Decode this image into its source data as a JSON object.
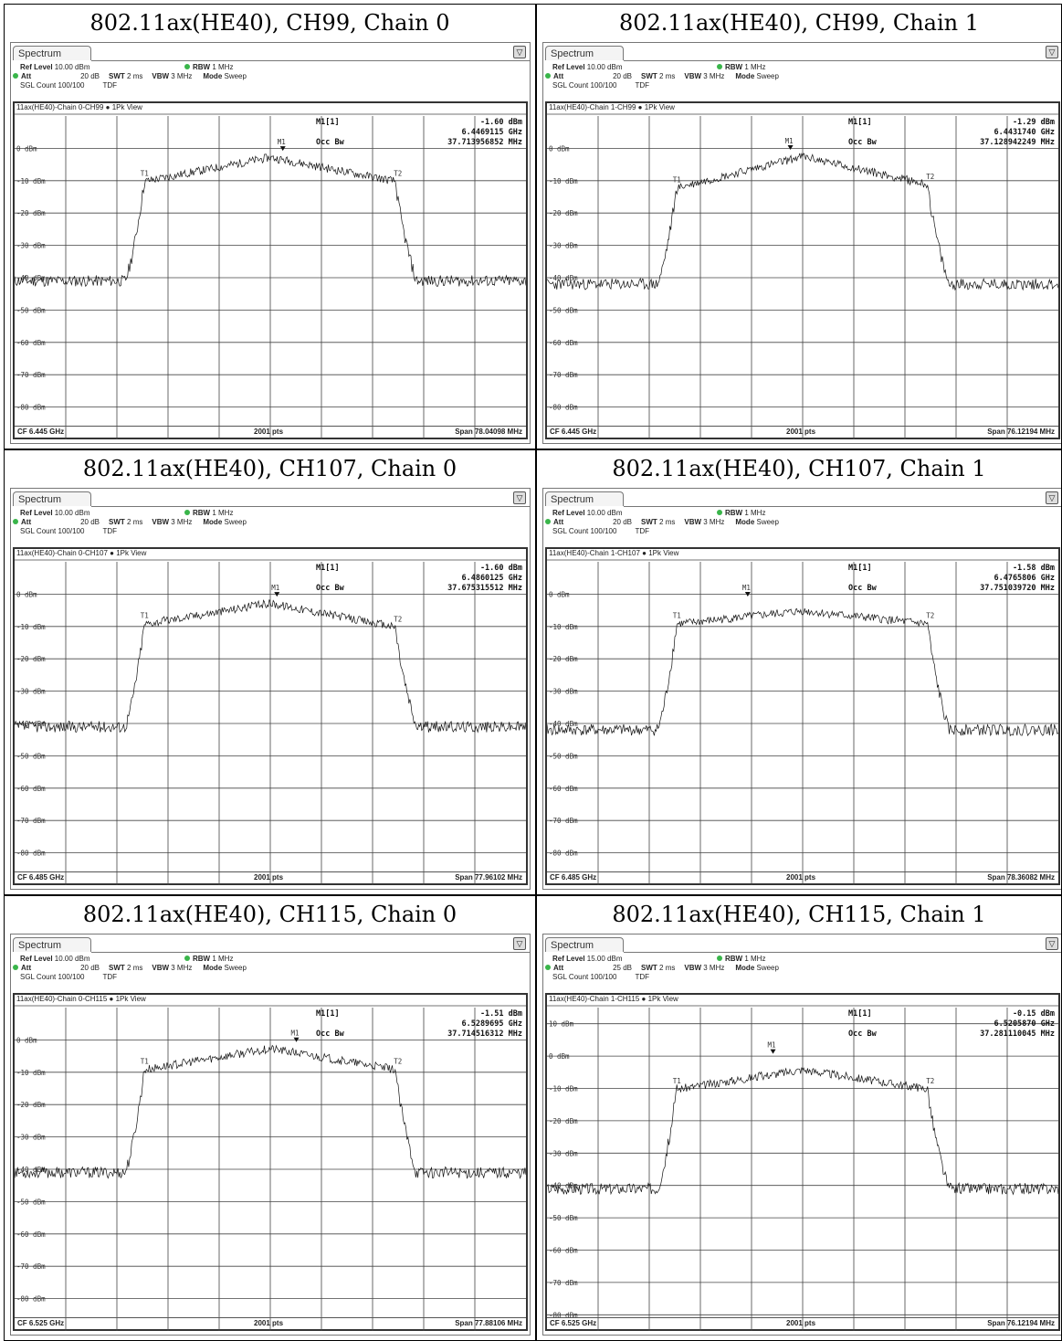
{
  "panels": [
    {
      "title": "802.11ax(HE40), CH99, Chain 0",
      "tab": "Spectrum",
      "ref_level": "10.00 dBm",
      "att": "20 dB",
      "swt": "2 ms",
      "rbw": "1 MHz",
      "vbw": "3 MHz",
      "mode": "Sweep",
      "sgl_count": "100/100",
      "tdf": "TDF",
      "trace_header": "11ax(HE40)-Chain 0-CH99",
      "view": "1Pk View",
      "marker": "M1[1]",
      "marker_level": "-1.60 dBm",
      "marker_freq": "6.4469115 GHz",
      "occ_bw_label": "Occ Bw",
      "occ_bw": "37.713956852 MHz",
      "cf": "CF 6.445 GHz",
      "pts": "2001 pts",
      "span": "Span 78.04098 MHz",
      "seed": 11
    },
    {
      "title": "802.11ax(HE40), CH99, Chain 1",
      "tab": "Spectrum",
      "ref_level": "10.00 dBm",
      "att": "20 dB",
      "swt": "2 ms",
      "rbw": "1 MHz",
      "vbw": "3 MHz",
      "mode": "Sweep",
      "sgl_count": "100/100",
      "tdf": "TDF",
      "trace_header": "11ax(HE40)-Chain 1-CH99",
      "view": "1Pk View",
      "marker": "M1[1]",
      "marker_level": "-1.29 dBm",
      "marker_freq": "6.4431740 GHz",
      "occ_bw_label": "Occ Bw",
      "occ_bw": "37.128942249 MHz",
      "cf": "CF 6.445 GHz",
      "pts": "2001 pts",
      "span": "Span 76.12194 MHz",
      "seed": 23
    },
    {
      "title": "802.11ax(HE40), CH107, Chain 0",
      "tab": "Spectrum",
      "ref_level": "10.00 dBm",
      "att": "20 dB",
      "swt": "2 ms",
      "rbw": "1 MHz",
      "vbw": "3 MHz",
      "mode": "Sweep",
      "sgl_count": "100/100",
      "tdf": "TDF",
      "trace_header": "11ax(HE40)-Chain 0-CH107",
      "view": "1Pk View",
      "marker": "M1[1]",
      "marker_level": "-1.60 dBm",
      "marker_freq": "6.4860125 GHz",
      "occ_bw_label": "Occ Bw",
      "occ_bw": "37.675315512 MHz",
      "cf": "CF 6.485 GHz",
      "pts": "2001 pts",
      "span": "Span 77.96102 MHz",
      "seed": 37
    },
    {
      "title": "802.11ax(HE40), CH107, Chain 1",
      "tab": "Spectrum",
      "ref_level": "10.00 dBm",
      "att": "20 dB",
      "swt": "2 ms",
      "rbw": "1 MHz",
      "vbw": "3 MHz",
      "mode": "Sweep",
      "sgl_count": "100/100",
      "tdf": "TDF",
      "trace_header": "11ax(HE40)-Chain 1-CH107",
      "view": "1Pk View",
      "marker": "M1[1]",
      "marker_level": "-1.58 dBm",
      "marker_freq": "6.4765806 GHz",
      "occ_bw_label": "Occ Bw",
      "occ_bw": "37.751039720 MHz",
      "cf": "CF 6.485 GHz",
      "pts": "2001 pts",
      "span": "Span 78.36082 MHz",
      "seed": 41
    },
    {
      "title": "802.11ax(HE40), CH115, Chain 0",
      "tab": "Spectrum",
      "ref_level": "10.00 dBm",
      "att": "20 dB",
      "swt": "2 ms",
      "rbw": "1 MHz",
      "vbw": "3 MHz",
      "mode": "Sweep",
      "sgl_count": "100/100",
      "tdf": "TDF",
      "trace_header": "11ax(HE40)-Chain 0-CH115",
      "view": "1Pk View",
      "marker": "M1[1]",
      "marker_level": "-1.51 dBm",
      "marker_freq": "6.5289695 GHz",
      "occ_bw_label": "Occ Bw",
      "occ_bw": "37.714516312 MHz",
      "cf": "CF 6.525 GHz",
      "pts": "2001 pts",
      "span": "Span 77.88106 MHz",
      "seed": 53
    },
    {
      "title": "802.11ax(HE40), CH115, Chain 1",
      "tab": "Spectrum",
      "ref_level": "15.00 dBm",
      "att": "25 dB",
      "swt": "2 ms",
      "rbw": "1 MHz",
      "vbw": "3 MHz",
      "mode": "Sweep",
      "sgl_count": "100/100",
      "tdf": "TDF",
      "trace_header": "11ax(HE40)-Chain 1-CH115",
      "view": "1Pk View",
      "marker": "M1[1]",
      "marker_level": "-0.15 dBm",
      "marker_freq": "6.5205870 GHz",
      "occ_bw_label": "Occ Bw",
      "occ_bw": "37.281110045 MHz",
      "cf": "CF 6.525 GHz",
      "pts": "2001 pts",
      "span": "Span 76.12194 MHz",
      "seed": 67
    }
  ],
  "chart_data": [
    {
      "type": "line",
      "title": "802.11ax(HE40), CH99, Chain 0",
      "ylim": [
        -90,
        10
      ],
      "yticks": [
        "0 dBm",
        "-10 dBm",
        "-20 dBm",
        "-30 dBm",
        "-40 dBm",
        "-50 dBm",
        "-60 dBm",
        "-70 dBm",
        "-80 dBm"
      ],
      "center_ghz": 6.445,
      "span_mhz": 78.04098,
      "noise_floor_dbm": -41,
      "plateau_dbm": [
        -9,
        -1.6,
        -9
      ],
      "t1": "T1",
      "t2": "T2",
      "m1": "M1",
      "marker_x_ghz": 6.4469115,
      "marker_y_dbm": -1.6
    },
    {
      "type": "line",
      "title": "802.11ax(HE40), CH99, Chain 1",
      "ylim": [
        -90,
        10
      ],
      "yticks": [
        "0 dBm",
        "-10 dBm",
        "-20 dBm",
        "-30 dBm",
        "-40 dBm",
        "-50 dBm",
        "-60 dBm",
        "-70 dBm",
        "-80 dBm"
      ],
      "center_ghz": 6.445,
      "span_mhz": 76.12194,
      "noise_floor_dbm": -42,
      "plateau_dbm": [
        -11,
        -1.3,
        -10
      ],
      "t1": "T1",
      "t2": "T2",
      "m1": "M1",
      "marker_x_ghz": 6.443174,
      "marker_y_dbm": -1.29
    },
    {
      "type": "line",
      "title": "802.11ax(HE40), CH107, Chain 0",
      "ylim": [
        -90,
        10
      ],
      "yticks": [
        "0 dBm",
        "-10 dBm",
        "-20 dBm",
        "-30 dBm",
        "-40 dBm",
        "-50 dBm",
        "-60 dBm",
        "-70 dBm",
        "-80 dBm"
      ],
      "center_ghz": 6.485,
      "span_mhz": 77.96102,
      "noise_floor_dbm": -41,
      "plateau_dbm": [
        -8,
        -1.6,
        -9
      ],
      "t1": "T1",
      "t2": "T2",
      "m1": "M1",
      "marker_x_ghz": 6.4860125,
      "marker_y_dbm": -1.6
    },
    {
      "type": "line",
      "title": "802.11ax(HE40), CH107, Chain 1",
      "ylim": [
        -90,
        10
      ],
      "yticks": [
        "0 dBm",
        "-10 dBm",
        "-20 dBm",
        "-30 dBm",
        "-40 dBm",
        "-50 dBm",
        "-60 dBm",
        "-70 dBm",
        "-80 dBm"
      ],
      "center_ghz": 6.485,
      "span_mhz": 78.36082,
      "noise_floor_dbm": -42,
      "plateau_dbm": [
        -8,
        -4,
        -8
      ],
      "t1": "T1",
      "t2": "T2",
      "m1": "M1",
      "marker_x_ghz": 6.4765806,
      "marker_y_dbm": -1.58
    },
    {
      "type": "line",
      "title": "802.11ax(HE40), CH115, Chain 0",
      "ylim": [
        -90,
        10
      ],
      "yticks": [
        "0 dBm",
        "-10 dBm",
        "-20 dBm",
        "-30 dBm",
        "-40 dBm",
        "-50 dBm",
        "-60 dBm",
        "-70 dBm",
        "-80 dBm"
      ],
      "center_ghz": 6.525,
      "span_mhz": 77.88106,
      "noise_floor_dbm": -41,
      "plateau_dbm": [
        -8,
        -1.5,
        -8
      ],
      "t1": "T1",
      "t2": "T2",
      "m1": "M1",
      "marker_x_ghz": 6.5289695,
      "marker_y_dbm": -1.51
    },
    {
      "type": "line",
      "title": "802.11ax(HE40), CH115, Chain 1",
      "ylim": [
        -85,
        15
      ],
      "yticks": [
        "10 dBm",
        "0 dBm",
        "-10 dBm",
        "-20 dBm",
        "-30 dBm",
        "-40 dBm",
        "-50 dBm",
        "-60 dBm",
        "-70 dBm",
        "-80 dBm"
      ],
      "center_ghz": 6.525,
      "span_mhz": 76.12194,
      "noise_floor_dbm": -41,
      "plateau_dbm": [
        -9,
        -3,
        -9
      ],
      "t1": "T1",
      "t2": "T2",
      "m1": "M1",
      "marker_x_ghz": 6.520587,
      "marker_y_dbm": -0.15
    }
  ]
}
